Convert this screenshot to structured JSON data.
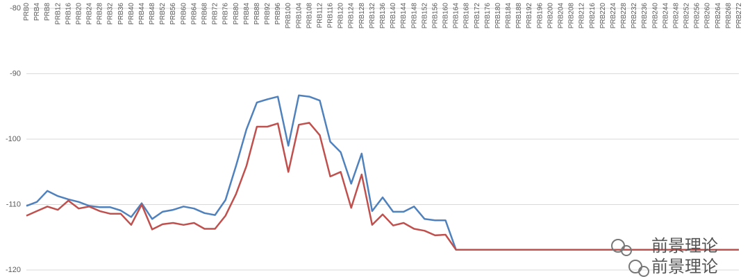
{
  "chart_data": {
    "type": "line",
    "categories": [
      "PRB0",
      "PRB4",
      "PRB8",
      "PRB12",
      "PRB16",
      "PRB20",
      "PRB24",
      "PRB28",
      "PRB32",
      "PRB36",
      "PRB40",
      "PRB44",
      "PRB48",
      "PRB52",
      "PRB56",
      "PRB60",
      "PRB64",
      "PRB68",
      "PRB72",
      "PRB76",
      "PRB80",
      "PRB84",
      "PRB88",
      "PRB92",
      "PRB96",
      "PRB100",
      "PRB104",
      "PRB108",
      "PRB112",
      "PRB116",
      "PRB120",
      "PRB124",
      "PRB128",
      "PRB132",
      "PRB136",
      "PRB140",
      "PRB144",
      "PRB148",
      "PRB152",
      "PRB156",
      "PRB160",
      "PRB164",
      "PRB168",
      "PRB172",
      "PRB176",
      "PRB180",
      "PRB184",
      "PRB188",
      "PRB192",
      "PRB196",
      "PRB200",
      "PRB204",
      "PRB208",
      "PRB212",
      "PRB216",
      "PRB220",
      "PRB224",
      "PRB228",
      "PRB232",
      "PRB236",
      "PRB240",
      "PRB244",
      "PRB248",
      "PRB252",
      "PRB256",
      "PRB260",
      "PRB264",
      "PRB268",
      "PRB272"
    ],
    "series": [
      {
        "color": "#4f81bd",
        "values": [
          -110.2,
          -109.6,
          -107.9,
          -108.7,
          -109.2,
          -109.6,
          -110.2,
          -110.4,
          -110.4,
          -110.9,
          -111.9,
          -109.8,
          -112.2,
          -111.1,
          -110.8,
          -110.3,
          -110.6,
          -111.3,
          -111.6,
          -109.3,
          -104.1,
          -98.5,
          -94.4,
          -93.9,
          -93.5,
          -101.0,
          -93.3,
          -93.5,
          -94.1,
          -100.4,
          -102.0,
          -106.8,
          -102.2,
          -111.0,
          -108.9,
          -111.1,
          -111.1,
          -110.3,
          -112.2,
          -112.4,
          -112.4,
          -116.9,
          -116.9,
          -116.9,
          -116.9,
          -116.9,
          -116.9,
          -116.9,
          -116.9,
          -116.9,
          -116.9,
          -116.9,
          -116.9,
          -116.9,
          -116.9,
          -116.9,
          -116.9,
          -116.9,
          -116.9,
          -116.9,
          -116.9,
          -116.9,
          -116.9,
          -116.9,
          -116.9,
          -116.9,
          -116.9,
          -116.9,
          -116.9
        ]
      },
      {
        "color": "#c0504d",
        "values": [
          -111.7,
          -111.0,
          -110.3,
          -110.8,
          -109.4,
          -110.6,
          -110.3,
          -111.0,
          -111.4,
          -111.4,
          -113.1,
          -110.0,
          -113.8,
          -113.0,
          -112.8,
          -113.1,
          -112.8,
          -113.7,
          -113.7,
          -111.7,
          -108.4,
          -104.1,
          -98.1,
          -98.1,
          -97.6,
          -105.0,
          -97.8,
          -97.5,
          -99.4,
          -105.7,
          -105.0,
          -110.5,
          -105.4,
          -113.1,
          -111.5,
          -113.2,
          -112.8,
          -113.7,
          -114.0,
          -114.7,
          -114.6,
          -116.9,
          -116.9,
          -116.9,
          -116.9,
          -116.9,
          -116.9,
          -116.9,
          -116.9,
          -116.9,
          -116.9,
          -116.9,
          -116.9,
          -116.9,
          -116.9,
          -116.9,
          -116.9,
          -116.9,
          -116.9,
          -116.9,
          -116.9,
          -116.9,
          -116.9,
          -116.9,
          -116.9,
          -116.9,
          -116.9,
          -116.9,
          -116.9
        ]
      }
    ],
    "ylim": [
      -120,
      -80
    ],
    "yticks": [
      -120,
      -110,
      -100,
      -90,
      -80
    ],
    "grid": true
  },
  "watermark": [
    "前景理论",
    "前景理论"
  ]
}
